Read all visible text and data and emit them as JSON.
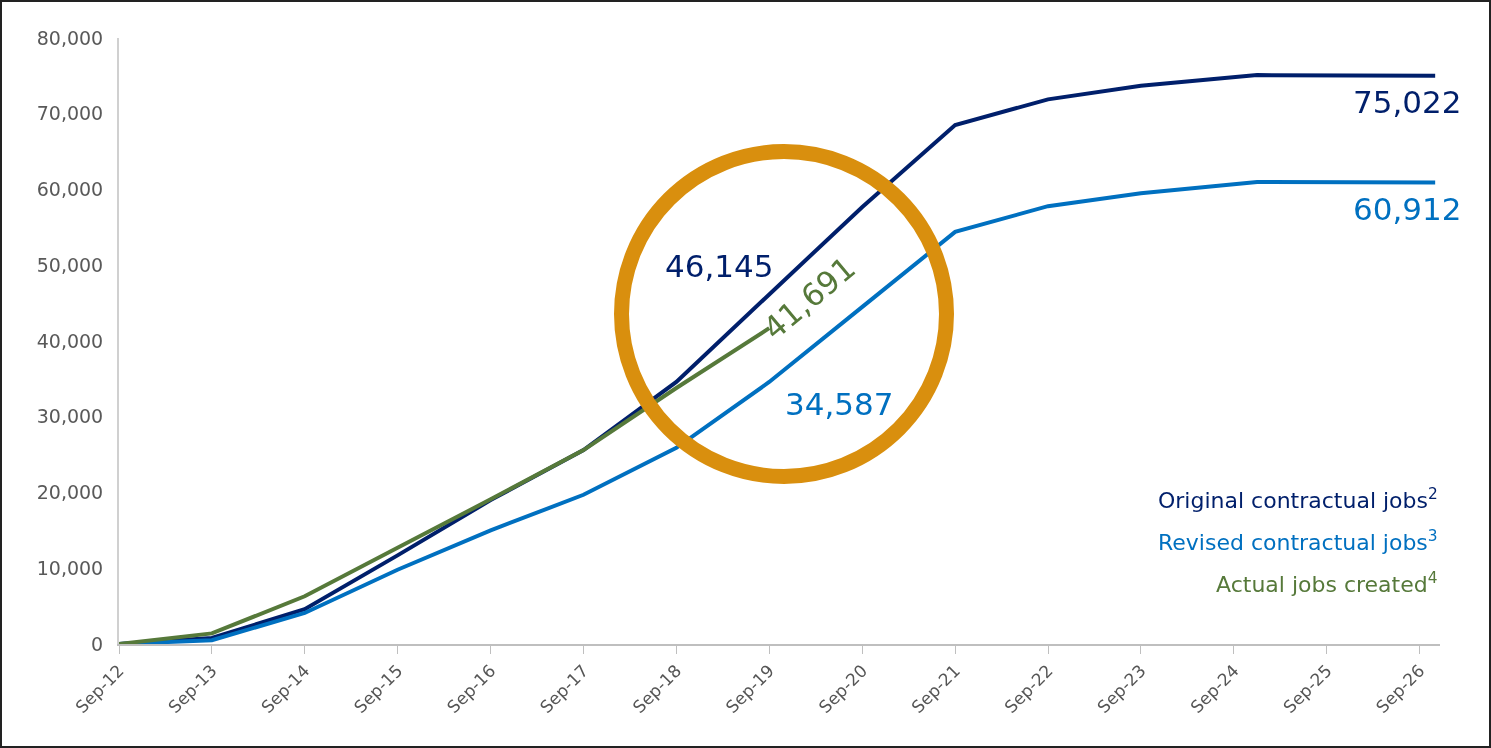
{
  "chart_data": {
    "type": "line",
    "xlim": [
      "2012-09-01",
      "2026-11-20"
    ],
    "xticks": [
      {
        "value": "2012-09-01",
        "label": "Sep-12"
      },
      {
        "value": "2013-09-01",
        "label": "Sep-13"
      },
      {
        "value": "2014-09-01",
        "label": "Sep-14"
      },
      {
        "value": "2015-09-01",
        "label": "Sep-15"
      },
      {
        "value": "2016-09-01",
        "label": "Sep-16"
      },
      {
        "value": "2017-09-01",
        "label": "Sep-17"
      },
      {
        "value": "2018-09-01",
        "label": "Sep-18"
      },
      {
        "value": "2019-09-01",
        "label": "Sep-19"
      },
      {
        "value": "2020-09-01",
        "label": "Sep-20"
      },
      {
        "value": "2021-09-01",
        "label": "Sep-21"
      },
      {
        "value": "2022-09-01",
        "label": "Sep-22"
      },
      {
        "value": "2023-09-01",
        "label": "Sep-23"
      },
      {
        "value": "2024-09-01",
        "label": "Sep-24"
      },
      {
        "value": "2025-09-01",
        "label": "Sep-25"
      },
      {
        "value": "2026-09-01",
        "label": "Sep-26"
      }
    ],
    "ylim": [
      0,
      80000
    ],
    "yticks": [
      {
        "value": 0,
        "label": "0"
      },
      {
        "value": 10000,
        "label": "10,000"
      },
      {
        "value": 20000,
        "label": "20,000"
      },
      {
        "value": 30000,
        "label": "30,000"
      },
      {
        "value": 40000,
        "label": "40,000"
      },
      {
        "value": 50000,
        "label": "50,000"
      },
      {
        "value": 60000,
        "label": "60,000"
      },
      {
        "value": 70000,
        "label": "70,000"
      },
      {
        "value": 80000,
        "label": "80,000"
      }
    ],
    "grid": false,
    "legend": "bottom right",
    "marker": "none",
    "line_style": "solid",
    "series": [
      {
        "name": "Original contractual jobs$^{2}$",
        "color": "#001f6b",
        "x": [
          "2012-09",
          "2013-09",
          "2014-09",
          "2015-09",
          "2016-09",
          "2017-09",
          "2018-09",
          "2019-09",
          "2020-09",
          "2021-09",
          "2022-09",
          "2023-09",
          "2024-12",
          "2026-11"
        ],
        "values": [
          0,
          800,
          4600,
          11700,
          19000,
          25600,
          34600,
          46145,
          57700,
          68500,
          71900,
          73700,
          75100,
          75022
        ],
        "value_labels": [
          null,
          null,
          null,
          null,
          null,
          null,
          null,
          "46,145",
          null,
          null,
          null,
          null,
          null,
          "75,022"
        ]
      },
      {
        "name": "Revised contractual jobs$^{3}$",
        "color": "#0070c0",
        "x": [
          "2012-09",
          "2013-09",
          "2014-09",
          "2015-09",
          "2016-09",
          "2017-09",
          "2018-09",
          "2019-09",
          "2020-09",
          "2021-09",
          "2022-09",
          "2023-09",
          "2024-12",
          "2026-11"
        ],
        "values": [
          0,
          500,
          4100,
          9800,
          15000,
          19700,
          25900,
          34587,
          44500,
          54400,
          57800,
          59500,
          61000,
          60912
        ],
        "value_labels": [
          null,
          null,
          null,
          null,
          null,
          null,
          null,
          "34,587",
          null,
          null,
          null,
          null,
          null,
          "60,912"
        ]
      },
      {
        "name": "Actual jobs created$^{4}$",
        "color": "#56793a",
        "x": [
          "2012-09",
          "2013-09",
          "2014-09",
          "2015-09",
          "2016-09",
          "2017-09",
          "2018-09",
          "2019-09"
        ],
        "values": [
          0,
          1400,
          6300,
          12700,
          19100,
          25600,
          33800,
          41691
        ],
        "value_labels": [
          null,
          null,
          null,
          null,
          null,
          null,
          null,
          "41,691"
        ]
      }
    ]
  }
}
